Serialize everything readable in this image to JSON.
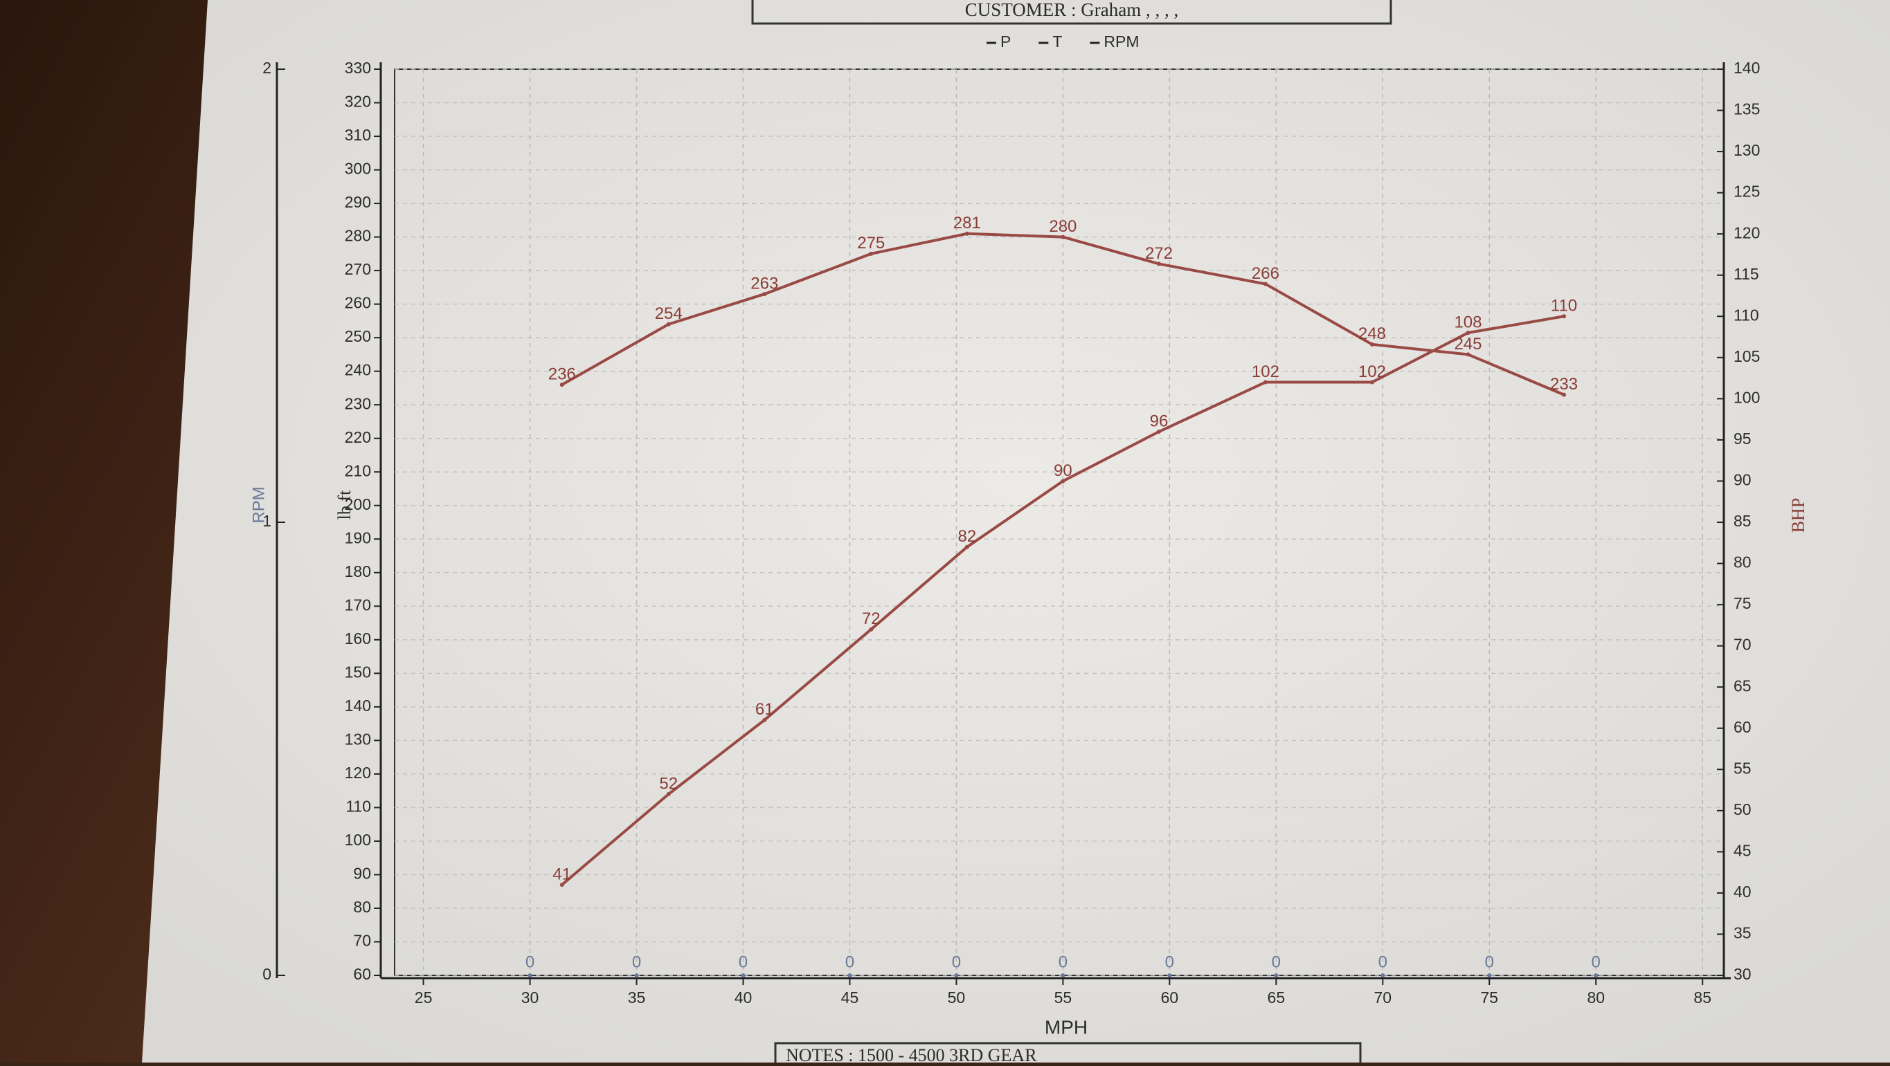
{
  "chart_data": {
    "type": "line",
    "title": "CUSTOMER : Graham , , , ,",
    "notes": "NOTES : 1500 - 4500 3RD GEAR",
    "xlabel": "MPH",
    "ylabel": "lb ft",
    "y2label": "BHP",
    "y3label": "RPM",
    "xlim": [
      23,
      86
    ],
    "xticks": [
      25,
      30,
      35,
      40,
      45,
      50,
      55,
      60,
      65,
      70,
      75,
      80,
      85
    ],
    "ylim": [
      60,
      330
    ],
    "yticks": [
      60,
      70,
      80,
      90,
      100,
      110,
      120,
      130,
      140,
      150,
      160,
      170,
      180,
      190,
      200,
      210,
      220,
      230,
      240,
      250,
      260,
      270,
      280,
      290,
      300,
      310,
      320,
      330
    ],
    "y2lim": [
      30,
      140
    ],
    "y2ticks": [
      30,
      35,
      40,
      45,
      50,
      55,
      60,
      65,
      70,
      75,
      80,
      85,
      90,
      95,
      100,
      105,
      110,
      115,
      120,
      125,
      130,
      135,
      140
    ],
    "y3lim": [
      0,
      2
    ],
    "y3ticks": [
      0,
      1,
      2
    ],
    "grid": true,
    "series": [
      {
        "name": "P",
        "color": "#9a4a44",
        "axis": "y2",
        "x": [
          31.5,
          36.5,
          41,
          46,
          50.5,
          55,
          59.5,
          64.5,
          69.5,
          74,
          78.5
        ],
        "values": [
          41,
          52,
          61,
          72,
          82,
          90,
          96,
          102,
          102,
          108,
          110
        ]
      },
      {
        "name": "T",
        "color": "#9a4a44",
        "axis": "y",
        "x": [
          31.5,
          36.5,
          41,
          46,
          50.5,
          55,
          59.5,
          64.5,
          69.5,
          74,
          78.5
        ],
        "values": [
          236,
          254,
          263,
          275,
          281,
          280,
          272,
          266,
          248,
          245,
          233
        ]
      },
      {
        "name": "RPM",
        "color": "#6a7a9a",
        "axis": "y3",
        "x": [
          30,
          35,
          40,
          45,
          50,
          55,
          60,
          65,
          70,
          75,
          80
        ],
        "values": [
          0,
          0,
          0,
          0,
          0,
          0,
          0,
          0,
          0,
          0,
          0
        ]
      }
    ]
  }
}
